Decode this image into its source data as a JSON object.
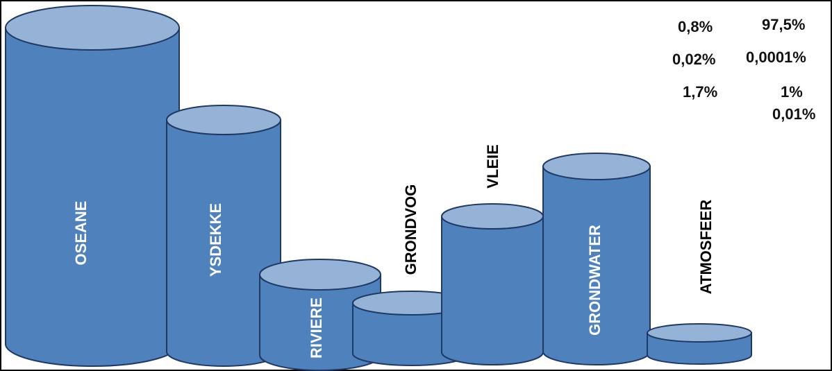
{
  "colors": {
    "body_fill": "#4f81bd",
    "top_fill": "#95b3d7",
    "outline": "#1f3864",
    "inner_label": "#ffffff",
    "outer_label": "#000000"
  },
  "cylinders": [
    {
      "name": "oseane",
      "label": "OSEANE"
    },
    {
      "name": "ysdekke",
      "label": "YSDEKKE"
    },
    {
      "name": "riviere",
      "label": "RIVIERE"
    },
    {
      "name": "grondvog",
      "label": "GRONDVOG"
    },
    {
      "name": "vleie",
      "label": "VLEIE"
    },
    {
      "name": "grondwater",
      "label": "GRONDWATER"
    },
    {
      "name": "atmosfeer",
      "label": "ATMOSFEER"
    }
  ],
  "percentages": [
    "0,8%",
    "97,5%",
    "0,02%",
    "0,0001%",
    "1,7%",
    "1%",
    "0,01%"
  ]
}
